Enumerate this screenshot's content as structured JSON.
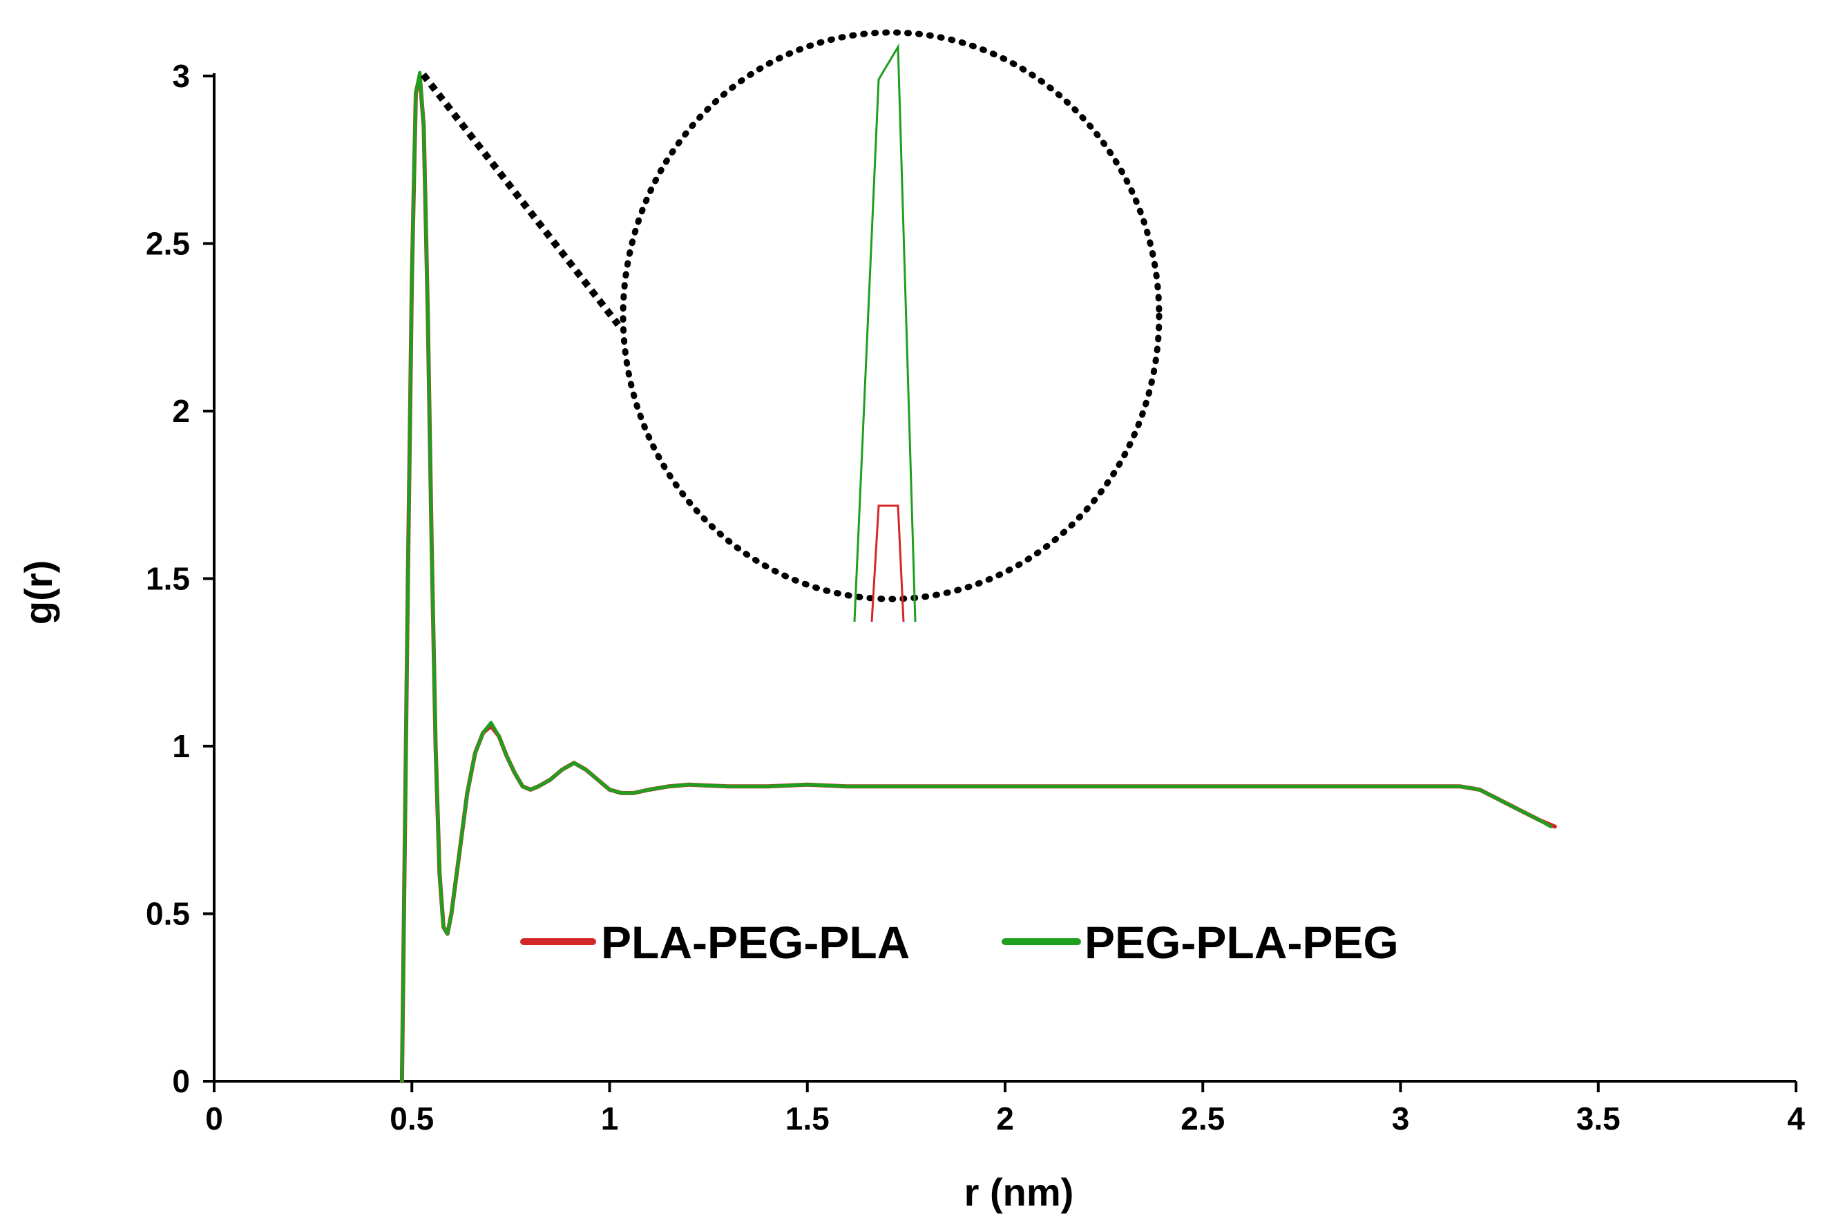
{
  "chart_data": {
    "type": "line",
    "title": "",
    "xlabel": "r (nm)",
    "ylabel": "g(r)",
    "xlim": [
      0,
      4
    ],
    "ylim": [
      0,
      3
    ],
    "xticks": [
      0,
      0.5,
      1,
      1.5,
      2,
      2.5,
      3,
      3.5,
      4
    ],
    "xtick_labels": [
      "0",
      "0.5",
      "1",
      "1.5",
      "2",
      "2.5",
      "3",
      "3.5",
      "4"
    ],
    "yticks": [
      0,
      0.5,
      1,
      1.5,
      2,
      2.5,
      3
    ],
    "ytick_labels": [
      "0",
      "0.5",
      "1",
      "1.5",
      "2",
      "2.5",
      "3"
    ],
    "grid": false,
    "legend": "inside, lower-center",
    "series": [
      {
        "name": "PLA-PEG-PLA",
        "color": "#d62728",
        "x": [
          0.475,
          0.48,
          0.49,
          0.5,
          0.51,
          0.52,
          0.53,
          0.54,
          0.55,
          0.56,
          0.57,
          0.58,
          0.59,
          0.6,
          0.62,
          0.64,
          0.66,
          0.68,
          0.7,
          0.72,
          0.74,
          0.76,
          0.78,
          0.8,
          0.82,
          0.85,
          0.88,
          0.91,
          0.94,
          0.97,
          1.0,
          1.03,
          1.06,
          1.1,
          1.15,
          1.2,
          1.3,
          1.4,
          1.5,
          1.6,
          1.8,
          2.0,
          2.5,
          3.0,
          3.1,
          3.15,
          3.2,
          3.25,
          3.3,
          3.35,
          3.39
        ],
        "y": [
          0.0,
          0.5,
          1.5,
          2.4,
          2.95,
          3.0,
          2.85,
          2.3,
          1.6,
          1.0,
          0.62,
          0.46,
          0.44,
          0.5,
          0.68,
          0.86,
          0.98,
          1.04,
          1.06,
          1.03,
          0.97,
          0.92,
          0.88,
          0.87,
          0.88,
          0.9,
          0.93,
          0.95,
          0.93,
          0.9,
          0.87,
          0.86,
          0.86,
          0.87,
          0.88,
          0.885,
          0.88,
          0.88,
          0.885,
          0.88,
          0.88,
          0.88,
          0.88,
          0.88,
          0.88,
          0.88,
          0.87,
          0.84,
          0.81,
          0.78,
          0.76
        ]
      },
      {
        "name": "PEG-PLA-PEG",
        "color": "#1f9e1f",
        "x": [
          0.475,
          0.48,
          0.49,
          0.5,
          0.51,
          0.52,
          0.53,
          0.54,
          0.55,
          0.56,
          0.57,
          0.58,
          0.59,
          0.6,
          0.62,
          0.64,
          0.66,
          0.68,
          0.7,
          0.72,
          0.74,
          0.76,
          0.78,
          0.8,
          0.82,
          0.85,
          0.88,
          0.91,
          0.94,
          0.97,
          1.0,
          1.03,
          1.06,
          1.1,
          1.15,
          1.2,
          1.3,
          1.4,
          1.5,
          1.6,
          1.8,
          2.0,
          2.5,
          3.0,
          3.1,
          3.15,
          3.2,
          3.25,
          3.3,
          3.35,
          3.38
        ],
        "y": [
          0.0,
          0.5,
          1.5,
          2.4,
          2.95,
          3.01,
          2.85,
          2.3,
          1.6,
          1.0,
          0.62,
          0.46,
          0.44,
          0.5,
          0.68,
          0.86,
          0.98,
          1.04,
          1.07,
          1.03,
          0.97,
          0.92,
          0.88,
          0.87,
          0.88,
          0.9,
          0.93,
          0.95,
          0.93,
          0.9,
          0.87,
          0.86,
          0.86,
          0.87,
          0.88,
          0.885,
          0.88,
          0.88,
          0.885,
          0.88,
          0.88,
          0.88,
          0.88,
          0.88,
          0.88,
          0.88,
          0.87,
          0.84,
          0.81,
          0.78,
          0.76
        ]
      }
    ],
    "inset": {
      "description_shape": "dotted circle magnifying the first peak near r = 0.52 nm",
      "callout_from": [
        0.52,
        3.0
      ]
    }
  }
}
